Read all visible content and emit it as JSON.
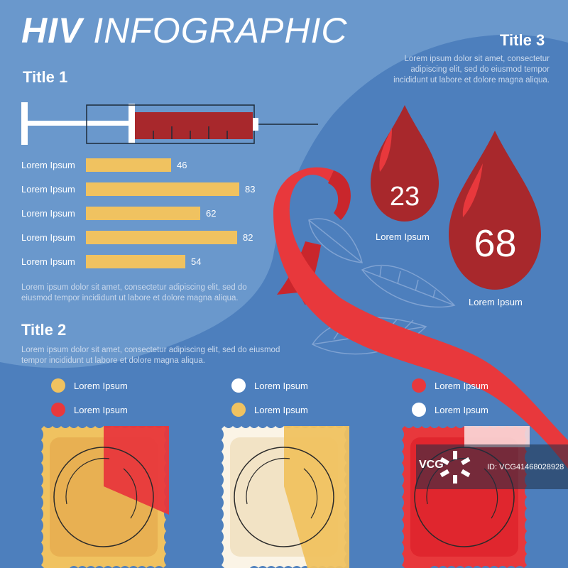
{
  "header": {
    "bold": "HIV",
    "thin": "INFOGRAPHIC"
  },
  "section1": {
    "title": "Title 1",
    "bars": [
      {
        "label": "Lorem Ipsum",
        "value": 46
      },
      {
        "label": "Lorem Ipsum",
        "value": 83
      },
      {
        "label": "Lorem Ipsum",
        "value": 62
      },
      {
        "label": "Lorem Ipsum",
        "value": 82
      },
      {
        "label": "Lorem Ipsum",
        "value": 54
      }
    ],
    "paragraph": "Lorem ipsum dolor sit amet, consectetur adipiscing elit, sed do eiusmod tempor incididunt ut labore et dolore magna aliqua."
  },
  "section2": {
    "title": "Title 2",
    "paragraph": "Lorem ipsum dolor sit amet, consectetur adipiscing elit, sed do eiusmod tempor incididunt ut labore et dolore magna aliqua.",
    "legends": [
      {
        "label": "Lorem Ipsum",
        "color": "#f0c260"
      },
      {
        "label": "Lorem Ipsum",
        "color": "#e8383c"
      },
      {
        "label": "Lorem Ipsum",
        "color": "#ffffff"
      },
      {
        "label": "Lorem Ipsum",
        "color": "#f0c260"
      },
      {
        "label": "Lorem Ipsum",
        "color": "#e8383c"
      },
      {
        "label": "Lorem Ipsum",
        "color": "#ffffff"
      }
    ]
  },
  "section3": {
    "title": "Title 3",
    "paragraph": "Lorem ipsum dolor sit amet, consectetur adipiscing elit, sed do eiusmod tempor incididunt ut labore et dolore magna aliqua.",
    "drops": [
      {
        "value": "23",
        "label": "Lorem Ipsum"
      },
      {
        "value": "68",
        "label": "Lorem Ipsum"
      }
    ]
  },
  "watermark": {
    "mark": "VCG",
    "id": "ID: VCG41468028928"
  },
  "colors": {
    "background": "#4d7fbd",
    "light_blob": "#6a98cc",
    "bar": "#f0c260",
    "ribbon": "#e8383c",
    "blood": "#a8282c"
  }
}
